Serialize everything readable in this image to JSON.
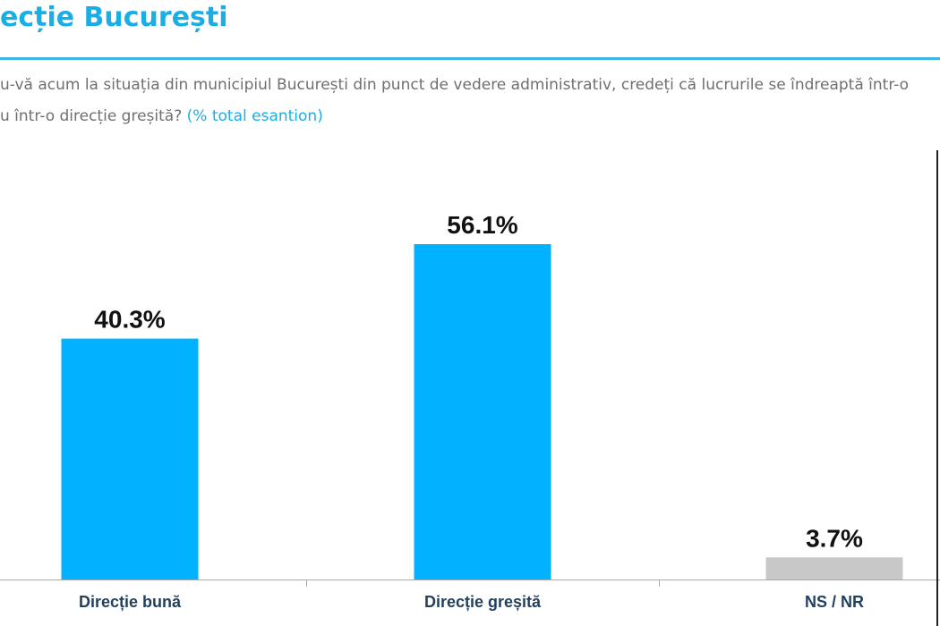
{
  "header": {
    "title": "ecție București",
    "question_line1": "u-vă acum la situația din municipiul București din punct de vedere administrativ, credeți că lucrurile se îndreaptă într-o",
    "question_line2": "u într-o direcție greșită?",
    "question_note": "(% total esantion)"
  },
  "colors": {
    "accent": "#19aee6",
    "bar_primary": "#00b2ff",
    "bar_neutral": "#c8c8c8",
    "axis": "#aaaaaa"
  },
  "chart_data": {
    "type": "bar",
    "categories": [
      "Direcție bună",
      "Direcție greșită",
      "NS / NR"
    ],
    "values": [
      40.3,
      56.1,
      3.7
    ],
    "value_labels": [
      "40.3%",
      "56.1%",
      "3.7%"
    ],
    "bar_colors": [
      "#00b2ff",
      "#00b2ff",
      "#c8c8c8"
    ],
    "ylim": [
      0,
      100
    ],
    "grid": false,
    "legend": "none"
  }
}
